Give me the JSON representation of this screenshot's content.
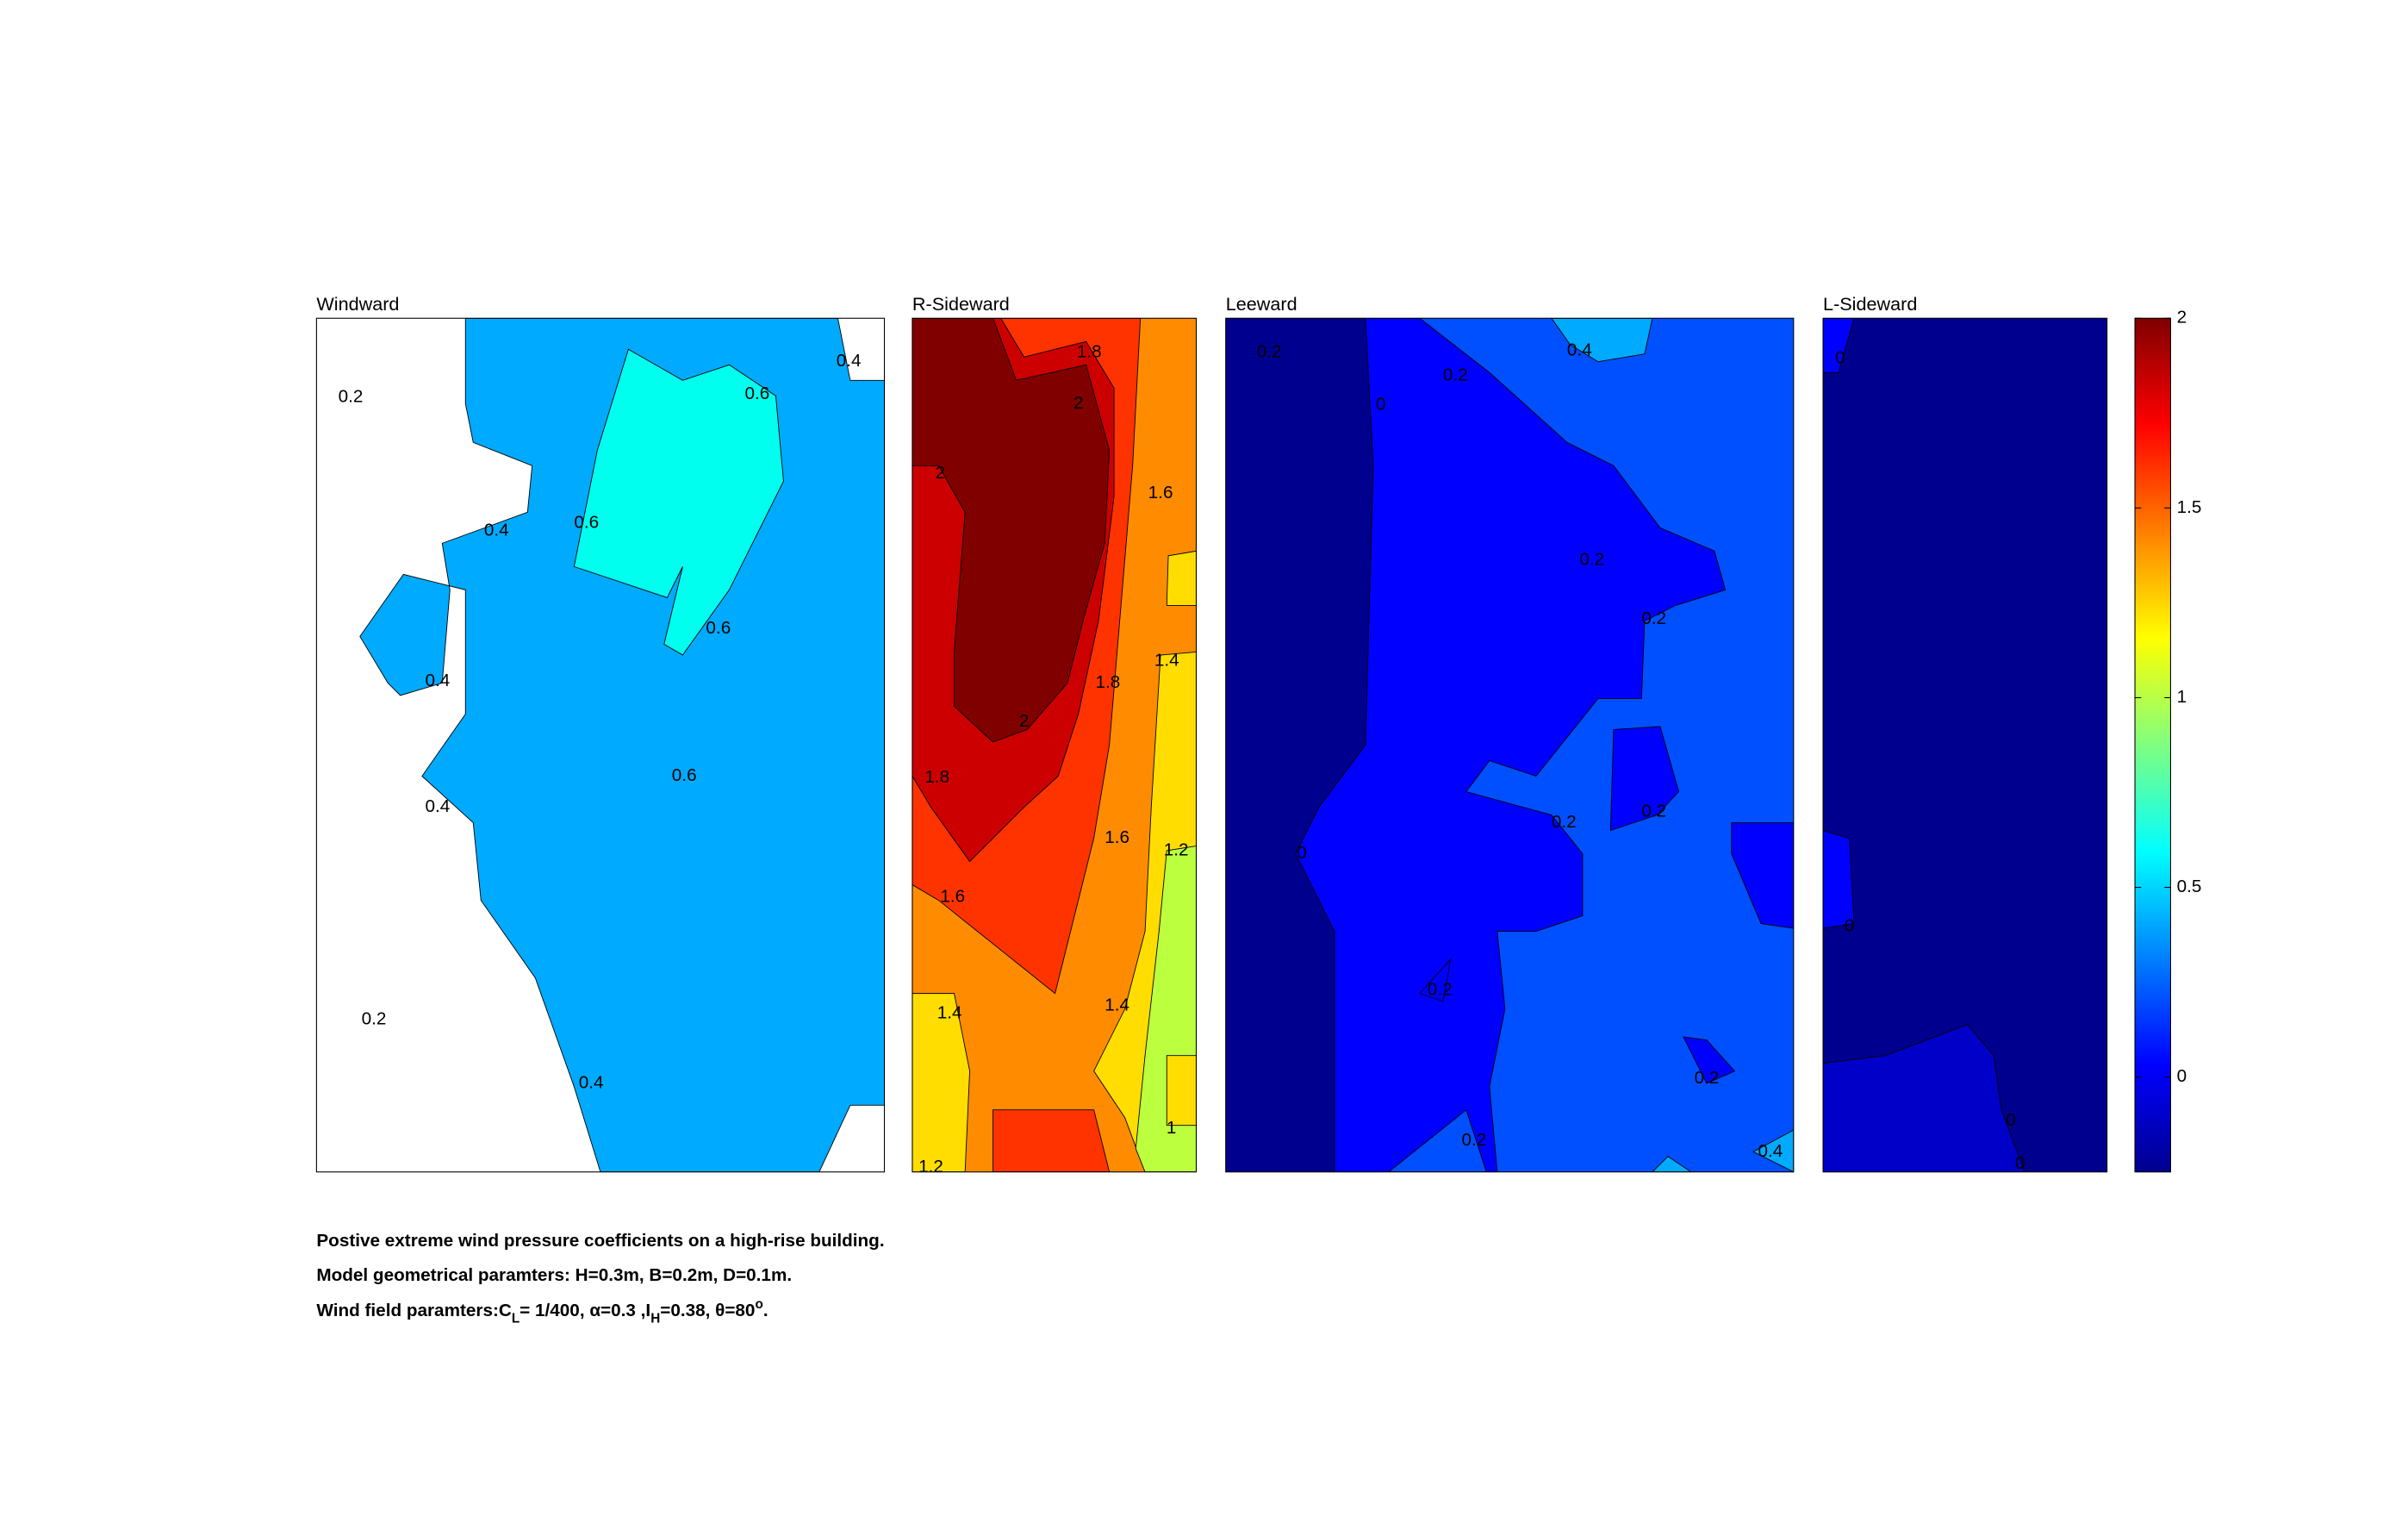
{
  "chart_data": [
    {
      "type": "contour",
      "title": "Windward",
      "levels": [
        0.2,
        0.4,
        0.6
      ],
      "colors": [
        "#0050ff",
        "#00aaff",
        "#00ffee"
      ],
      "contour_labels": [
        0.2,
        0.4,
        0.6,
        0.4,
        0.6,
        0.6,
        0.4,
        0.6,
        0.4,
        0.2,
        0.4
      ]
    },
    {
      "type": "contour",
      "title": "R-Sideward",
      "levels": [
        1,
        1.2,
        1.4,
        1.6,
        1.8,
        2
      ],
      "colors": [
        "#bbff3f",
        "#ffdd00",
        "#ff8c00",
        "#ff3300",
        "#cc0000",
        "#800000"
      ],
      "contour_labels": [
        1.8,
        2,
        2,
        1.6,
        1.4,
        1.8,
        2,
        1.8,
        1.6,
        1.2,
        1.6,
        1.4,
        1.4,
        1,
        1.2
      ]
    },
    {
      "type": "contour",
      "title": "Leeward",
      "levels": [
        -0.2,
        0,
        0.2,
        0.4
      ],
      "colors": [
        "#00008f",
        "#0000ff",
        "#0050ff",
        "#00aaff"
      ],
      "contour_labels": [
        0.2,
        0.2,
        0.4,
        0,
        0.2,
        0.2,
        0.2,
        0.2,
        0,
        0.2,
        0.2,
        0.2,
        0.4
      ]
    },
    {
      "type": "contour",
      "title": "L-Sideward",
      "levels": [
        -0.2,
        -0.1,
        0
      ],
      "colors": [
        "#00008f",
        "#0000c8",
        "#0000ff"
      ],
      "contour_labels": [
        0,
        0,
        0,
        0
      ]
    },
    {
      "type": "colorbar",
      "colormap": "jet",
      "ylim": [
        -0.25,
        2
      ],
      "yticks": [
        0,
        0.5,
        1,
        1.5,
        2
      ]
    }
  ],
  "caption": [
    "Postive extreme  wind pressure coefficients on a high-rise building.",
    "Model geometrical paramters: H=0.3m, B=0.2m, D=0.1m.",
    [
      "Wind field paramters:C",
      "L",
      "= 1/400, α=0.3 ,I",
      "H",
      "=0.38, θ=80",
      "o",
      "."
    ]
  ]
}
